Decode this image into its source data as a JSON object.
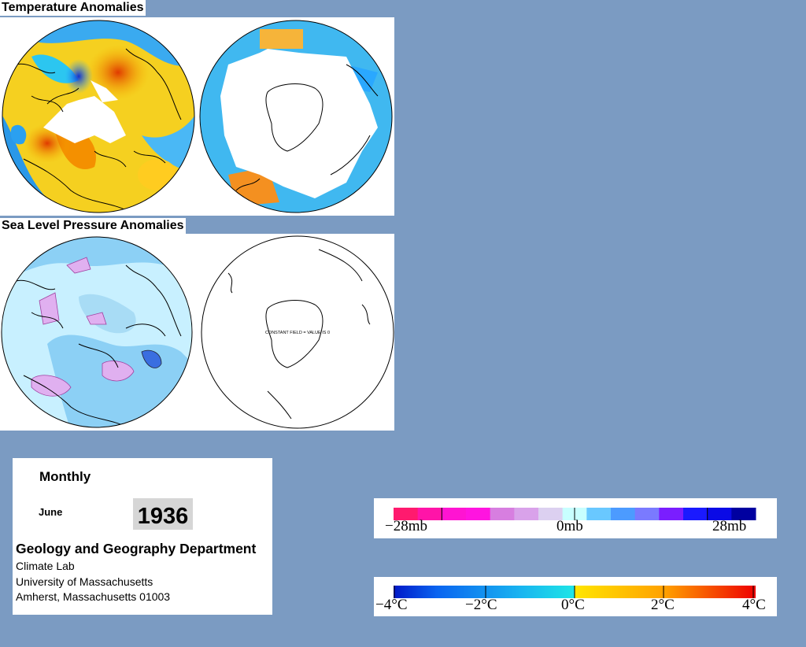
{
  "titles": {
    "temperature": "Temperature Anomalies",
    "pressure": "Sea Level Pressure Anomalies"
  },
  "map_annotations": {
    "constant_field": "CONSTANT FIELD = VALUE IS 0"
  },
  "info": {
    "period": "Monthly",
    "month": "June",
    "year": "1936",
    "department": "Geology and Geography Department",
    "lab": "Climate Lab",
    "university": "University of Massachusetts",
    "address": "Amherst, Massachusetts 01003"
  },
  "pressure_scale": {
    "min_label": "−28mb",
    "mid_label": "0mb",
    "max_label": "28mb",
    "colors": [
      "#ff1a6e",
      "#ff14a8",
      "#ff14d2",
      "#ff14e0",
      "#d77ee0",
      "#d9a2ea",
      "#dcd0f0",
      "#c8ffff",
      "#69c8ff",
      "#4c9bff",
      "#7a7aff",
      "#7a1eff",
      "#1a1aff",
      "#0a0ae6",
      "#0000a0"
    ]
  },
  "temperature_scale": {
    "labels": [
      "−4°C",
      "−2°C",
      "0°C",
      "2°C",
      "4°C"
    ]
  }
}
